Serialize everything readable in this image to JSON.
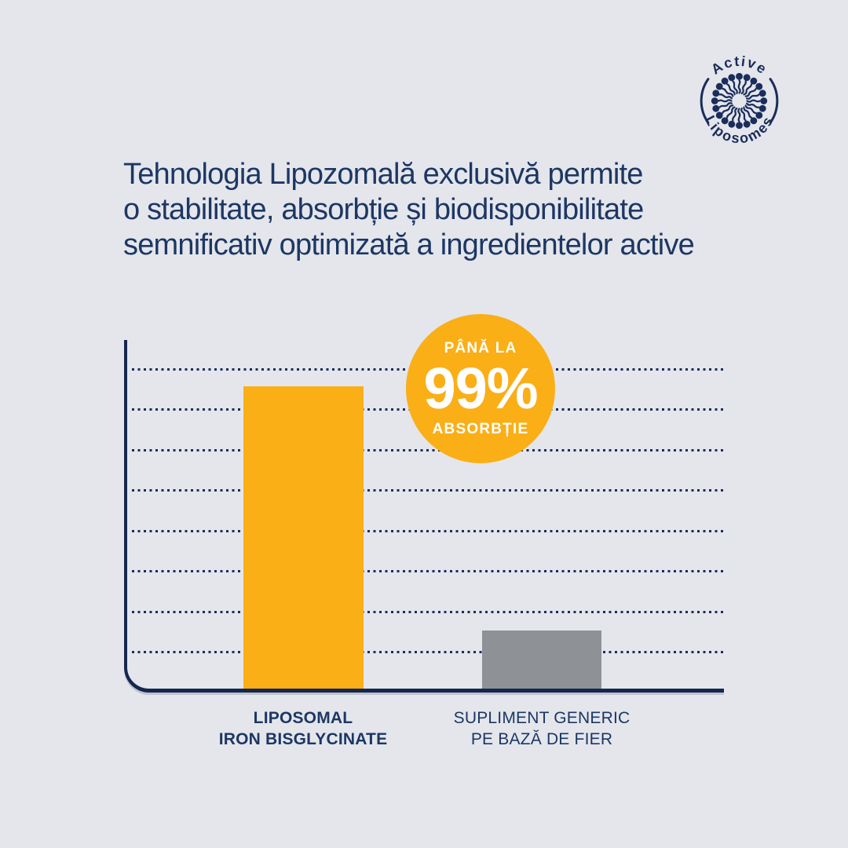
{
  "page": {
    "background_color": "#e4e6ec",
    "navy": "#1d3763",
    "accent_yellow": "#faaf17",
    "bar_gray": "#8e9196"
  },
  "logo": {
    "arc_text_top": "Active",
    "arc_text_bottom": "Liposomes",
    "color": "#1b2d5a"
  },
  "headline": {
    "lines": [
      "Tehnologia Lipozomală exclusivă permite",
      "o stabilitate, absorbție și biodisponibilitate",
      "semnificativ optimizată a ingredientelor active"
    ]
  },
  "badge": {
    "prefix": "PÂNĂ LA",
    "value": "99%",
    "suffix": "ABSORBȚIE",
    "bg_color": "#faaf17",
    "text_color": "#ffffff"
  },
  "chart_data": {
    "type": "bar",
    "title": "",
    "categories": [
      "LIPOSOMAL IRON BISGLYCINATE",
      "SUPLIMENT GENERIC PE BAZĂ DE FIER"
    ],
    "category_lines": [
      [
        "LIPOSOMAL",
        "IRON BISGLYCINATE"
      ],
      [
        "SUPLIMENT GENERIC",
        "PE BAZĂ DE FIER"
      ]
    ],
    "values": [
      99,
      19
    ],
    "value_unit": "% absorbție",
    "annotation": "PÂNĂ LA 99% ABSORBȚIE",
    "ylim": [
      0,
      114
    ],
    "gridline_count": 8,
    "grid_style": "dotted",
    "axis_labels_shown": false,
    "legend": "none",
    "bar_colors": [
      "#faaf17",
      "#8e9196"
    ]
  }
}
